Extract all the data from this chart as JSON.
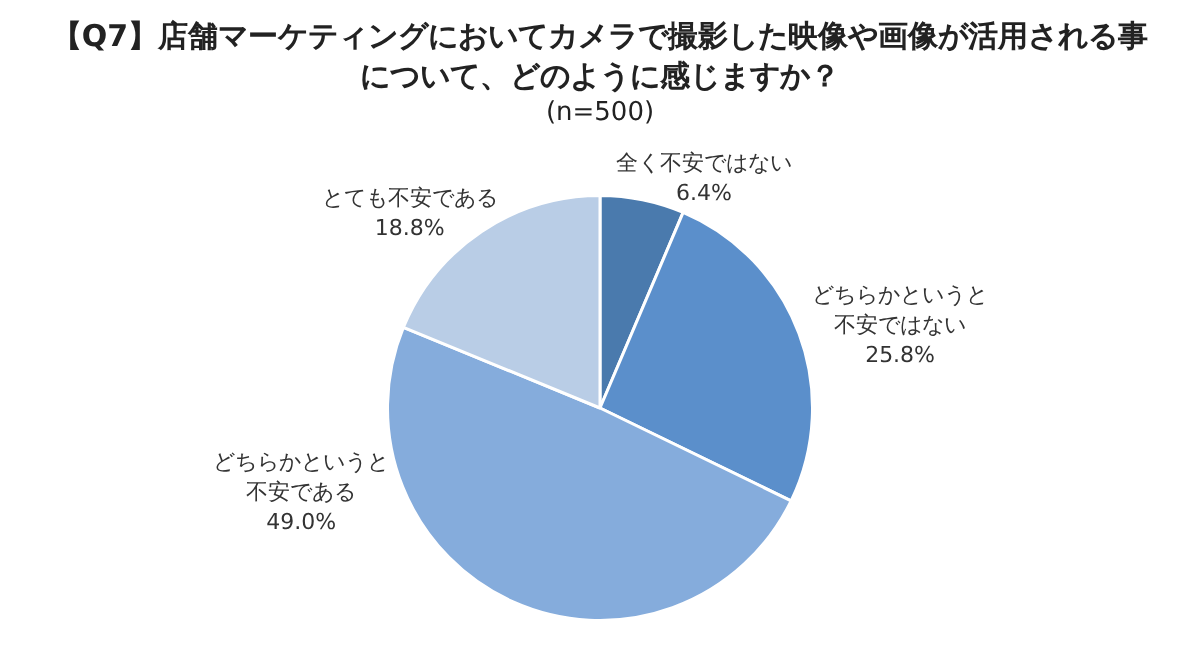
{
  "chart_data": {
    "type": "pie",
    "title": "【Q7】店舗マーケティングにおいてカメラで撮影した映像や画像が活用される事について、どのように感じますか？",
    "subtitle": "(n=500)",
    "categories": [
      "全く不安ではない",
      "どちらかというと不安ではない",
      "どちらかというと不安である",
      "とても不安である"
    ],
    "values": [
      6.4,
      25.8,
      49.0,
      18.8
    ],
    "colors": [
      "#4a7aad",
      "#5b8fcb",
      "#85acdc",
      "#b9cde6"
    ],
    "value_labels": [
      "6.4%",
      "25.8%",
      "49.0%",
      "18.8%"
    ],
    "legend": false
  }
}
